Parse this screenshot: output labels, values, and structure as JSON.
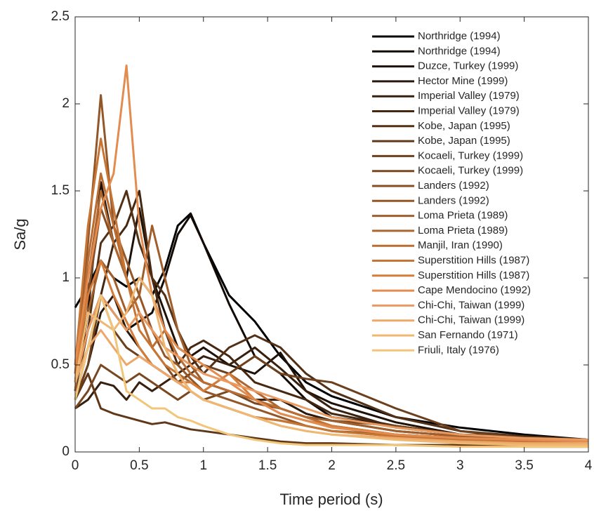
{
  "chart_data": {
    "type": "line",
    "xlabel": "Time period (s)",
    "ylabel": "Sa/g",
    "x": [
      0,
      0.1,
      0.2,
      0.3,
      0.4,
      0.5,
      0.6,
      0.7,
      0.8,
      0.9,
      1,
      1.2,
      1.4,
      1.6,
      1.8,
      2,
      2.5,
      3,
      3.5,
      4
    ],
    "xlim": [
      0,
      4
    ],
    "xticks": [
      0,
      0.5,
      1,
      1.5,
      2,
      2.5,
      3,
      3.5,
      4
    ],
    "ylim": [
      0,
      2.5
    ],
    "yticks": [
      0,
      0.5,
      1,
      1.5,
      2,
      2.5
    ],
    "grid": false,
    "legend": "upper right",
    "series": [
      {
        "name": "Northridge (1994)",
        "color": "#000000",
        "values": [
          0.83,
          0.95,
          1.1,
          1.0,
          0.95,
          1.0,
          0.9,
          1.05,
          1.3,
          1.37,
          1.2,
          0.9,
          0.75,
          0.55,
          0.4,
          0.32,
          0.2,
          0.14,
          0.1,
          0.07
        ]
      },
      {
        "name": "Northridge (1994)",
        "color": "#120a05",
        "values": [
          0.45,
          0.7,
          0.9,
          0.8,
          0.7,
          0.75,
          0.8,
          1.0,
          1.25,
          1.36,
          1.2,
          0.85,
          0.55,
          0.45,
          0.3,
          0.2,
          0.15,
          0.1,
          0.08,
          0.06
        ]
      },
      {
        "name": "Duzce, Turkey (1999)",
        "color": "#1e1108",
        "values": [
          0.35,
          0.8,
          1.55,
          1.2,
          1.0,
          1.4,
          1.0,
          0.8,
          0.6,
          0.55,
          0.6,
          0.5,
          0.45,
          0.57,
          0.35,
          0.28,
          0.17,
          0.1,
          0.07,
          0.06
        ]
      },
      {
        "name": "Hector Mine (1999)",
        "color": "#2b180c",
        "values": [
          0.3,
          0.5,
          0.8,
          0.9,
          0.7,
          0.6,
          0.5,
          0.45,
          0.4,
          0.45,
          0.4,
          0.35,
          0.3,
          0.3,
          0.22,
          0.18,
          0.12,
          0.09,
          0.07,
          0.06
        ]
      },
      {
        "name": "Imperial Valley (1979)",
        "color": "#38200f",
        "values": [
          0.25,
          0.3,
          0.4,
          0.38,
          0.3,
          0.4,
          0.35,
          0.4,
          0.45,
          0.5,
          0.55,
          0.5,
          0.6,
          0.48,
          0.35,
          0.25,
          0.14,
          0.1,
          0.09,
          0.07
        ]
      },
      {
        "name": "Imperial Valley (1979)",
        "color": "#452812",
        "values": [
          0.3,
          0.6,
          0.9,
          1.2,
          1.3,
          1.5,
          1.0,
          0.7,
          0.5,
          0.6,
          0.64,
          0.55,
          0.4,
          0.35,
          0.3,
          0.22,
          0.15,
          0.1,
          0.08,
          0.07
        ]
      },
      {
        "name": "Kobe, Japan (1995)",
        "color": "#523016",
        "values": [
          0.35,
          0.7,
          1.2,
          1.3,
          1.5,
          1.2,
          1.0,
          0.9,
          0.7,
          0.55,
          0.45,
          0.6,
          0.67,
          0.6,
          0.45,
          0.35,
          0.2,
          0.12,
          0.09,
          0.07
        ]
      },
      {
        "name": "Kobe, Japan (1995)",
        "color": "#5f3719",
        "values": [
          0.3,
          0.45,
          0.25,
          0.22,
          0.2,
          0.18,
          0.16,
          0.17,
          0.15,
          0.13,
          0.12,
          0.1,
          0.08,
          0.06,
          0.05,
          0.05,
          0.04,
          0.04,
          0.03,
          0.03
        ]
      },
      {
        "name": "Kocaeli, Turkey (1999)",
        "color": "#6c3f1d",
        "values": [
          0.3,
          0.5,
          0.9,
          0.7,
          0.6,
          0.55,
          0.5,
          0.45,
          0.4,
          0.45,
          0.5,
          0.45,
          0.55,
          0.45,
          0.42,
          0.4,
          0.25,
          0.12,
          0.08,
          0.06
        ]
      },
      {
        "name": "Kocaeli, Turkey (1999)",
        "color": "#794720",
        "values": [
          0.25,
          0.35,
          0.5,
          0.45,
          0.4,
          0.45,
          0.4,
          0.35,
          0.3,
          0.35,
          0.3,
          0.35,
          0.28,
          0.25,
          0.2,
          0.18,
          0.15,
          0.1,
          0.08,
          0.07
        ]
      },
      {
        "name": "Landers (1992)",
        "color": "#864e24",
        "values": [
          0.4,
          0.9,
          1.4,
          1.2,
          1.0,
          0.8,
          0.6,
          0.5,
          0.4,
          0.35,
          0.3,
          0.25,
          0.2,
          0.18,
          0.15,
          0.12,
          0.1,
          0.08,
          0.07,
          0.06
        ]
      },
      {
        "name": "Landers (1992)",
        "color": "#935627",
        "values": [
          0.45,
          1.2,
          2.05,
          1.3,
          1.1,
          0.9,
          0.7,
          0.55,
          0.5,
          0.42,
          0.35,
          0.3,
          0.25,
          0.2,
          0.15,
          0.12,
          0.09,
          0.08,
          0.07,
          0.06
        ]
      },
      {
        "name": "Loma Prieta (1989)",
        "color": "#a05e2b",
        "values": [
          0.4,
          0.8,
          1.1,
          1.0,
          0.8,
          0.9,
          1.3,
          1.0,
          0.7,
          0.5,
          0.4,
          0.35,
          0.3,
          0.25,
          0.2,
          0.18,
          0.12,
          0.09,
          0.08,
          0.07
        ]
      },
      {
        "name": "Loma Prieta (1989)",
        "color": "#ad652e",
        "values": [
          0.35,
          1.0,
          1.5,
          1.2,
          1.0,
          0.8,
          0.7,
          0.6,
          0.45,
          0.4,
          0.35,
          0.45,
          0.35,
          0.25,
          0.2,
          0.15,
          0.1,
          0.08,
          0.07,
          0.06
        ]
      },
      {
        "name": "Manjil, Iran (1990)",
        "color": "#ba6d32",
        "values": [
          0.4,
          1.1,
          1.6,
          1.3,
          1.0,
          0.8,
          0.6,
          0.7,
          0.55,
          0.45,
          0.4,
          0.35,
          0.3,
          0.25,
          0.2,
          0.15,
          0.1,
          0.08,
          0.07,
          0.06
        ]
      },
      {
        "name": "Superstition Hills (1987)",
        "color": "#c77535",
        "values": [
          0.5,
          1.3,
          1.8,
          1.4,
          1.0,
          0.7,
          0.6,
          0.5,
          0.45,
          0.35,
          0.3,
          0.25,
          0.2,
          0.18,
          0.15,
          0.12,
          0.09,
          0.07,
          0.06,
          0.05
        ]
      },
      {
        "name": "Superstition Hills (1987)",
        "color": "#d47c39",
        "values": [
          0.45,
          0.9,
          1.1,
          0.9,
          0.75,
          0.6,
          0.5,
          0.45,
          0.4,
          0.4,
          0.35,
          0.45,
          0.3,
          0.22,
          0.18,
          0.15,
          0.1,
          0.08,
          0.07,
          0.06
        ]
      },
      {
        "name": "Cape Mendocino (1992)",
        "color": "#e38c50",
        "values": [
          0.5,
          1.0,
          1.4,
          1.6,
          2.22,
          1.3,
          0.9,
          0.7,
          0.6,
          0.55,
          0.5,
          0.4,
          0.3,
          0.22,
          0.18,
          0.14,
          0.1,
          0.08,
          0.07,
          0.06
        ]
      },
      {
        "name": "Chi-Chi, Taiwan (1999)",
        "color": "#e89a60",
        "values": [
          0.4,
          0.7,
          0.9,
          0.8,
          0.7,
          0.8,
          0.7,
          0.6,
          0.55,
          0.5,
          0.45,
          0.4,
          0.35,
          0.3,
          0.25,
          0.2,
          0.14,
          0.1,
          0.08,
          0.07
        ]
      },
      {
        "name": "Chi-Chi, Taiwan (1999)",
        "color": "#eca86a",
        "values": [
          0.4,
          0.6,
          0.7,
          0.6,
          0.5,
          0.55,
          0.5,
          0.45,
          0.4,
          0.35,
          0.3,
          0.25,
          0.2,
          0.15,
          0.12,
          0.1,
          0.08,
          0.06,
          0.05,
          0.05
        ]
      },
      {
        "name": "San Fernando (1971)",
        "color": "#efb772",
        "values": [
          0.4,
          0.8,
          0.75,
          0.7,
          0.8,
          1.0,
          0.9,
          0.6,
          0.45,
          0.35,
          0.3,
          0.25,
          0.2,
          0.15,
          0.12,
          0.1,
          0.07,
          0.05,
          0.04,
          0.04
        ]
      },
      {
        "name": "Friuli, Italy (1976)",
        "color": "#f2c67a",
        "values": [
          0.3,
          0.6,
          0.9,
          0.7,
          0.35,
          0.3,
          0.25,
          0.25,
          0.2,
          0.18,
          0.15,
          0.1,
          0.07,
          0.05,
          0.04,
          0.04,
          0.04,
          0.03,
          0.03,
          0.03
        ]
      }
    ]
  }
}
